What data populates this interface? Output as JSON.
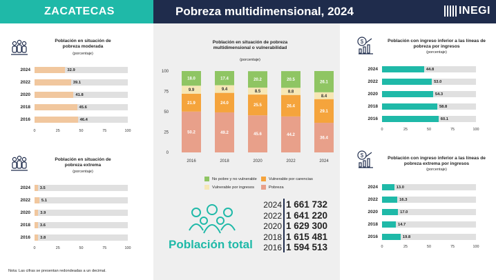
{
  "header": {
    "state": "ZACATECAS",
    "title": "Pobreza multidimensional, 2024",
    "logo_text": "INEGI"
  },
  "colors": {
    "teal": "#1fb9a8",
    "navy": "#1f2c4c",
    "peach": "#f1c79e",
    "green": "#8fc563",
    "yellow": "#f6e7b5",
    "orange": "#f5a43c",
    "salmon": "#e8a08a"
  },
  "icons": {
    "moderate": "family-icon",
    "extreme": "family-icon",
    "income": "income-chart-icon",
    "income_extreme": "income-chart-icon",
    "population": "people-group-icon"
  },
  "note": "Nota: Las cifras se presentan redondeadas a un decimal.",
  "population": {
    "label": "Población total",
    "rows": [
      {
        "year": "2024",
        "value": "1 661 732"
      },
      {
        "year": "2022",
        "value": "1 641 220"
      },
      {
        "year": "2020",
        "value": "1 629 300"
      },
      {
        "year": "2018",
        "value": "1 615 481"
      },
      {
        "year": "2016",
        "value": "1 594 513"
      }
    ]
  },
  "chart_data": [
    {
      "id": "moderada",
      "type": "bar",
      "orientation": "horizontal",
      "title": "Población en situación de pobreza moderada",
      "subtitle": "(porcentaje)",
      "categories": [
        "2024",
        "2022",
        "2020",
        "2018",
        "2016"
      ],
      "values": [
        32.9,
        39.1,
        41.8,
        45.6,
        46.4
      ],
      "value_labels": [
        "32.9",
        "39.1",
        "41.8",
        "45.6",
        "46.4"
      ],
      "xlim": [
        0,
        100
      ],
      "ticks": [
        "0",
        "25",
        "50",
        "75",
        "100"
      ],
      "color": "#f1c79e"
    },
    {
      "id": "extrema",
      "type": "bar",
      "orientation": "horizontal",
      "title": "Población en situación de pobreza extrema",
      "subtitle": "(porcentaje)",
      "categories": [
        "2024",
        "2022",
        "2020",
        "2018",
        "2016"
      ],
      "values": [
        3.5,
        5.1,
        3.9,
        3.6,
        3.8
      ],
      "value_labels": [
        "3.5",
        "5.1",
        "3.9",
        "3.6",
        "3.8"
      ],
      "xlim": [
        0,
        100
      ],
      "ticks": [
        "0",
        "25",
        "50",
        "75",
        "100"
      ],
      "color": "#f1c79e"
    },
    {
      "id": "ingresos",
      "type": "bar",
      "orientation": "horizontal",
      "title": "Población con ingreso inferior a las líneas de pobreza por ingresos",
      "subtitle": "(porcentaje)",
      "categories": [
        "2024",
        "2022",
        "2020",
        "2018",
        "2016"
      ],
      "values": [
        44.8,
        53.0,
        54.3,
        58.8,
        60.1
      ],
      "value_labels": [
        "44.8",
        "53.0",
        "54.3",
        "58.8",
        "60.1"
      ],
      "xlim": [
        0,
        100
      ],
      "ticks": [
        "0",
        "25",
        "50",
        "75",
        "100"
      ],
      "color": "#1fb9a8"
    },
    {
      "id": "ingresos_extrema",
      "type": "bar",
      "orientation": "horizontal",
      "title": "Población con ingreso inferior a las líneas de pobreza extrema por ingresos",
      "subtitle": "(porcentaje)",
      "categories": [
        "2024",
        "2022",
        "2020",
        "2018",
        "2016"
      ],
      "values": [
        13.0,
        16.3,
        17.0,
        14.7,
        19.8
      ],
      "value_labels": [
        "13.0",
        "16.3",
        "17.0",
        "14.7",
        "19.8"
      ],
      "xlim": [
        0,
        100
      ],
      "ticks": [
        "0",
        "25",
        "50",
        "75",
        "100"
      ],
      "color": "#1fb9a8"
    },
    {
      "id": "multidimensional",
      "type": "bar",
      "stacked": true,
      "title": "Población en situación de pobreza multidimensional o vulnerabilidad",
      "subtitle": "(porcentaje)",
      "categories": [
        "2016",
        "2018",
        "2020",
        "2022",
        "2024"
      ],
      "ylim": [
        0,
        100
      ],
      "yticks": [
        "0",
        "25",
        "50",
        "75",
        "100"
      ],
      "series": [
        {
          "name": "Pobreza",
          "values": [
            50.2,
            49.2,
            45.6,
            44.2,
            36.4
          ],
          "labels": [
            "50.2",
            "49.2",
            "45.6",
            "44.2",
            "36.4"
          ],
          "color": "#e8a08a"
        },
        {
          "name": "Vulnerable por carencias",
          "values": [
            21.9,
            24.0,
            25.5,
            26.4,
            29.1
          ],
          "labels": [
            "21.9",
            "24.0",
            "25.5",
            "26.4",
            "29.1"
          ],
          "color": "#f5a43c"
        },
        {
          "name": "Vulnerable por ingresos",
          "values": [
            9.9,
            9.4,
            8.5,
            8.8,
            8.4
          ],
          "labels": [
            "9.9",
            "9.4",
            "8.5",
            "8.8",
            "8.4"
          ],
          "color": "#f6e7b5"
        },
        {
          "name": "No pobre y no vulnerable",
          "values": [
            18.0,
            17.4,
            20.2,
            20.5,
            26.1
          ],
          "labels": [
            "18.0",
            "17.4",
            "20.2",
            "20.5",
            "26.1"
          ],
          "color": "#8fc563"
        }
      ],
      "legend_order": [
        "No pobre y no vulnerable",
        "Vulnerable por carencias",
        "Vulnerable por ingresos",
        "Pobreza"
      ]
    }
  ]
}
